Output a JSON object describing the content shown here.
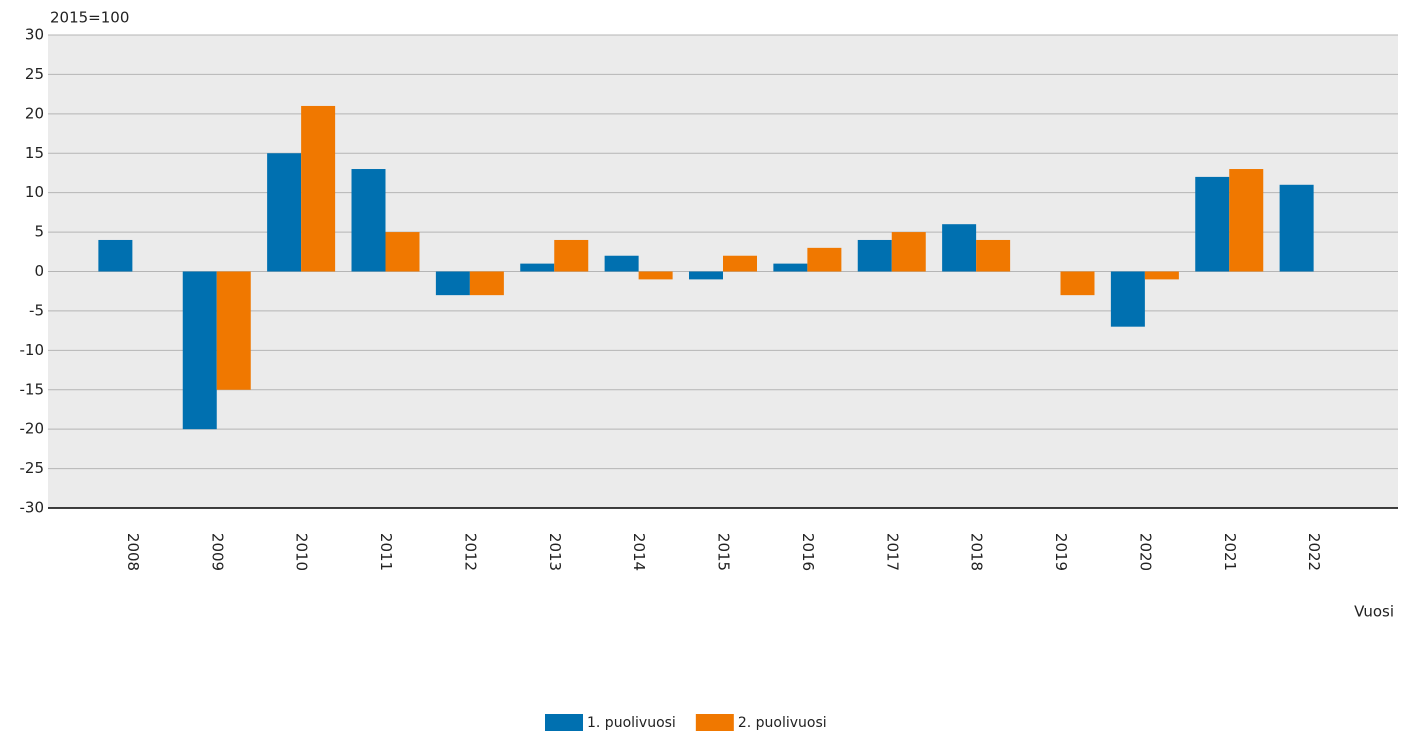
{
  "chart_data": {
    "type": "bar",
    "y_unit_label": "2015=100",
    "x_axis_label": "Vuosi",
    "categories": [
      "2008",
      "2009",
      "2010",
      "2011",
      "2012",
      "2013",
      "2014",
      "2015",
      "2016",
      "2017",
      "2018",
      "2019",
      "2020",
      "2021",
      "2022"
    ],
    "series": [
      {
        "name": "1. puolivuosi",
        "color": "#0070b0",
        "values": [
          4,
          -20,
          15,
          13,
          -3,
          1,
          2,
          -1,
          1,
          4,
          6,
          0,
          -7,
          12,
          11
        ]
      },
      {
        "name": "2. puolivuosi",
        "color": "#f07800",
        "values": [
          null,
          -15,
          21,
          5,
          -3,
          4,
          -1,
          2,
          3,
          5,
          4,
          -3,
          -1,
          13,
          null
        ]
      }
    ],
    "ylim": [
      -30,
      30
    ],
    "yticks": [
      -30,
      -25,
      -20,
      -15,
      -10,
      -5,
      0,
      5,
      10,
      15,
      20,
      25,
      30
    ],
    "grid": true
  }
}
